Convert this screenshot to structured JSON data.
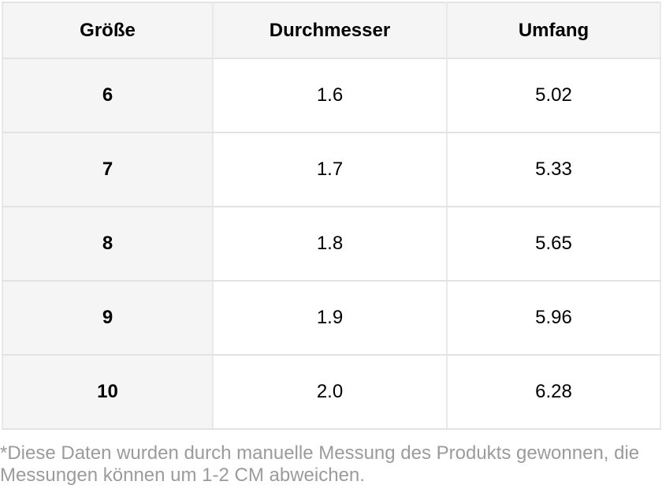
{
  "chart_data": {
    "type": "table",
    "columns": [
      "Größe",
      "Durchmesser",
      "Umfang"
    ],
    "rows": [
      [
        "6",
        "1.6",
        "5.02"
      ],
      [
        "7",
        "1.7",
        "5.33"
      ],
      [
        "8",
        "1.8",
        "5.65"
      ],
      [
        "9",
        "1.9",
        "5.96"
      ],
      [
        "10",
        "2.0",
        "6.28"
      ]
    ]
  },
  "footnote": "*Diese Daten wurden durch manuelle Messung des Produkts gewonnen, die Messungen können um 1-2 CM abweichen.",
  "colors": {
    "shaded_cell_bg": "#f5f5f5",
    "border_horizontal": "#e3e3e3",
    "border_vertical": "#e9e9e9",
    "table_text": "#000000",
    "footnote_text": "#9b9b9b",
    "page_background": "#ffffff"
  }
}
